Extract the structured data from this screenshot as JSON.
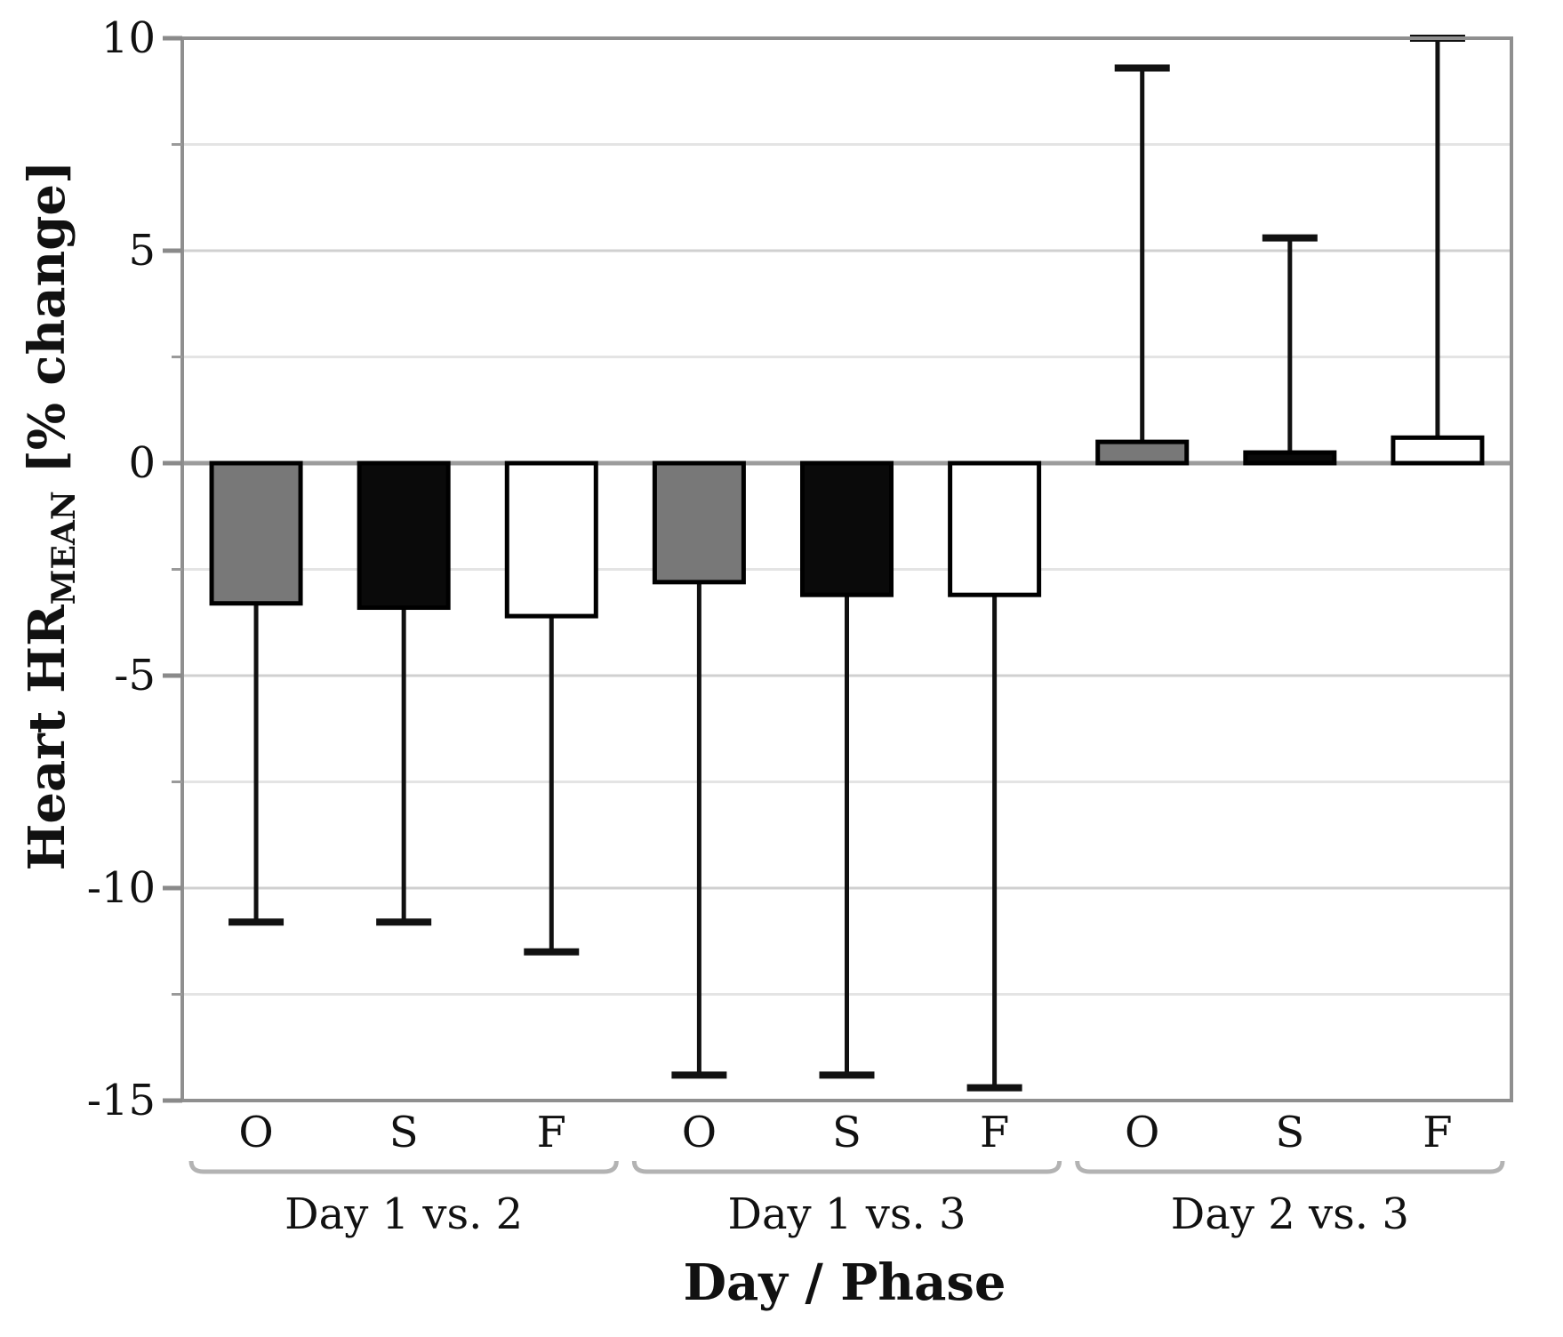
{
  "figure": {
    "y_label_main": "Heart HR",
    "y_label_sub": "MEAN",
    "y_label_unit": " [% change]",
    "x_axis_title": "Day / Phase"
  },
  "chart_data": {
    "type": "bar",
    "title": "",
    "ylabel": "Heart HR_MEAN [% change]",
    "xlabel": "Day / Phase",
    "ylim": [
      -15,
      10
    ],
    "y_major_ticks": [
      10,
      5,
      0,
      -5,
      -10,
      -15
    ],
    "y_minor_ticks": [
      7.5,
      2.5,
      -2.5,
      -7.5,
      -12.5
    ],
    "grid": true,
    "legend_position": "none",
    "error_bars": "one-sided whiskers with end caps",
    "phases": [
      "O",
      "S",
      "F"
    ],
    "groups": [
      {
        "label": "Day 1 vs. 2",
        "bars": [
          {
            "phase": "O",
            "value": -3.3,
            "whisker_end": -10.8
          },
          {
            "phase": "S",
            "value": -3.4,
            "whisker_end": -10.8
          },
          {
            "phase": "F",
            "value": -3.6,
            "whisker_end": -11.5
          }
        ]
      },
      {
        "label": "Day 1 vs. 3",
        "bars": [
          {
            "phase": "O",
            "value": -2.8,
            "whisker_end": -14.4
          },
          {
            "phase": "S",
            "value": -3.1,
            "whisker_end": -14.4
          },
          {
            "phase": "F",
            "value": -3.1,
            "whisker_end": -14.7
          }
        ]
      },
      {
        "label": "Day 2 vs. 3",
        "bars": [
          {
            "phase": "O",
            "value": 0.5,
            "whisker_end": 9.3
          },
          {
            "phase": "S",
            "value": 0.25,
            "whisker_end": 5.3
          },
          {
            "phase": "F",
            "value": 0.6,
            "whisker_end": 10.0
          }
        ]
      }
    ],
    "phase_fill_colors": {
      "O": "#787878",
      "S": "#0a0a0a",
      "F": "#ffffff"
    },
    "style_colors": {
      "bar_outline": "#000000",
      "whisker": "#111111",
      "zero_line": "#9c9c9c",
      "plot_border": "#8f8f8f",
      "grid_major": "#d0d0d0",
      "grid_minor": "#e4e4e4",
      "tick_major": "#8a8a8a",
      "tick_minor": "#9a9a9a",
      "bracket": "#b3b3b3",
      "text": "#111111"
    }
  }
}
